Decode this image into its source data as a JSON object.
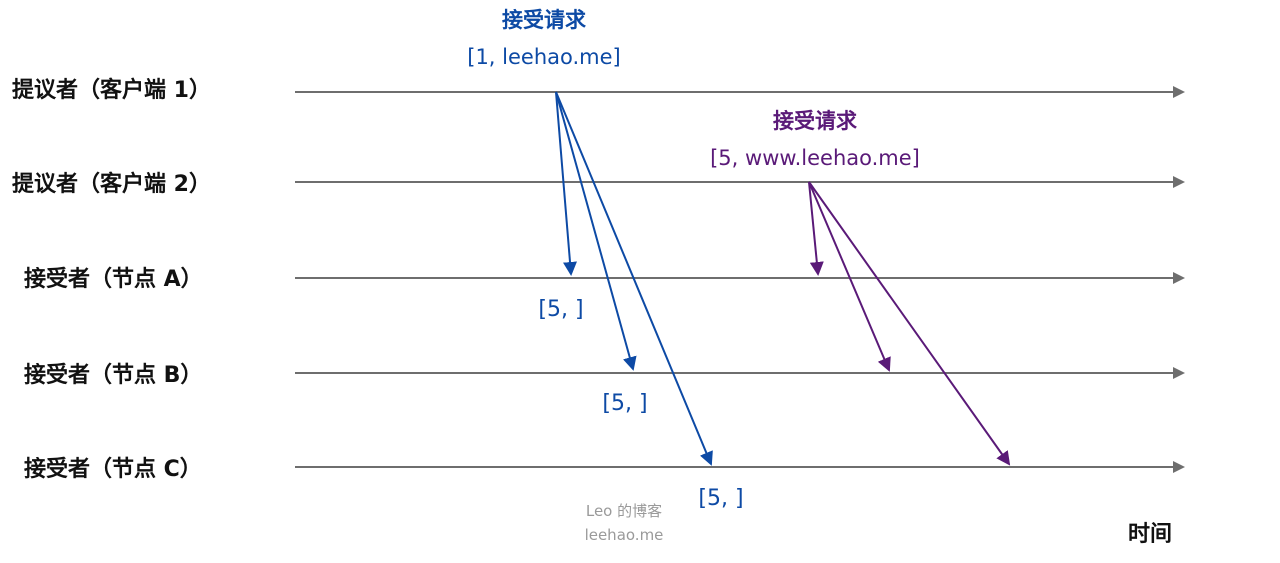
{
  "colors": {
    "timeline": "#6e6e6e",
    "client1": "#0d4aa5",
    "client2": "#5a1a78",
    "watermark": "#9a9a9a"
  },
  "lanes": [
    {
      "label": "提议者（客户端 1）"
    },
    {
      "label": "提议者（客户端 2）"
    },
    {
      "label": "接受者（节点 A）"
    },
    {
      "label": "接受者（节点 B）"
    },
    {
      "label": "接受者（节点 C）"
    }
  ],
  "requests": [
    {
      "title": "接受请求",
      "value": "[1, leehao.me]"
    },
    {
      "title": "接受请求",
      "value": "[5, www.leehao.me]"
    }
  ],
  "responses": [
    {
      "text": "[5, ]"
    },
    {
      "text": "[5, ]"
    },
    {
      "text": "[5, ]"
    }
  ],
  "watermark": {
    "line1": "Leo 的博客",
    "line2": "leehao.me"
  },
  "axis": {
    "label": "时间"
  }
}
